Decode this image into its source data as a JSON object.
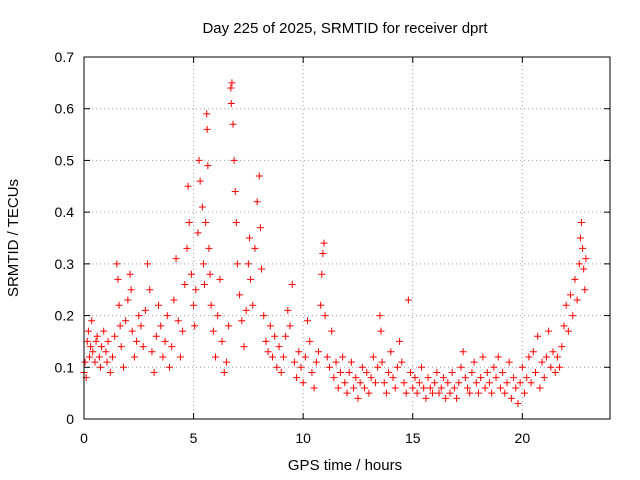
{
  "chart_data": {
    "type": "scatter",
    "title": "Day 225 of 2025, SRMTID for receiver dprt",
    "xlabel": "GPS time / hours",
    "ylabel": "SRMTID / TECUs",
    "xlim": [
      0,
      24
    ],
    "ylim": [
      0,
      0.7
    ],
    "xticks": [
      0,
      5,
      10,
      15,
      20
    ],
    "xtick_labels": [
      "0",
      "5",
      "10",
      "15",
      "20"
    ],
    "yticks": [
      0,
      0.1,
      0.2,
      0.3,
      0.4,
      0.5,
      0.6,
      0.7
    ],
    "ytick_labels": [
      "0",
      "0.1",
      "0.2",
      "0.3",
      "0.4",
      "0.5",
      "0.6",
      "0.7"
    ],
    "grid": true,
    "marker": "+",
    "marker_color": "#ff0000",
    "series": [
      {
        "name": "SRMTID",
        "points": [
          [
            0.0,
            0.09
          ],
          [
            0.05,
            0.11
          ],
          [
            0.1,
            0.08
          ],
          [
            0.15,
            0.15
          ],
          [
            0.2,
            0.17
          ],
          [
            0.25,
            0.12
          ],
          [
            0.3,
            0.14
          ],
          [
            0.35,
            0.19
          ],
          [
            0.4,
            0.13
          ],
          [
            0.5,
            0.11
          ],
          [
            0.55,
            0.15
          ],
          [
            0.6,
            0.16
          ],
          [
            0.7,
            0.12
          ],
          [
            0.75,
            0.1
          ],
          [
            0.8,
            0.14
          ],
          [
            0.9,
            0.17
          ],
          [
            1.0,
            0.13
          ],
          [
            1.05,
            0.11
          ],
          [
            1.1,
            0.15
          ],
          [
            1.2,
            0.09
          ],
          [
            1.3,
            0.12
          ],
          [
            1.4,
            0.16
          ],
          [
            1.5,
            0.3
          ],
          [
            1.55,
            0.27
          ],
          [
            1.6,
            0.22
          ],
          [
            1.65,
            0.18
          ],
          [
            1.7,
            0.14
          ],
          [
            1.8,
            0.1
          ],
          [
            1.9,
            0.19
          ],
          [
            2.0,
            0.23
          ],
          [
            2.1,
            0.28
          ],
          [
            2.15,
            0.25
          ],
          [
            2.2,
            0.17
          ],
          [
            2.3,
            0.12
          ],
          [
            2.4,
            0.15
          ],
          [
            2.5,
            0.2
          ],
          [
            2.6,
            0.18
          ],
          [
            2.7,
            0.14
          ],
          [
            2.8,
            0.21
          ],
          [
            2.9,
            0.3
          ],
          [
            3.0,
            0.25
          ],
          [
            3.1,
            0.13
          ],
          [
            3.2,
            0.09
          ],
          [
            3.3,
            0.16
          ],
          [
            3.4,
            0.22
          ],
          [
            3.5,
            0.18
          ],
          [
            3.6,
            0.12
          ],
          [
            3.7,
            0.15
          ],
          [
            3.8,
            0.2
          ],
          [
            3.9,
            0.1
          ],
          [
            4.0,
            0.14
          ],
          [
            4.1,
            0.23
          ],
          [
            4.2,
            0.31
          ],
          [
            4.3,
            0.19
          ],
          [
            4.4,
            0.12
          ],
          [
            4.5,
            0.17
          ],
          [
            4.6,
            0.26
          ],
          [
            4.7,
            0.33
          ],
          [
            4.75,
            0.45
          ],
          [
            4.8,
            0.38
          ],
          [
            4.9,
            0.28
          ],
          [
            5.0,
            0.22
          ],
          [
            5.05,
            0.18
          ],
          [
            5.1,
            0.25
          ],
          [
            5.2,
            0.36
          ],
          [
            5.25,
            0.5
          ],
          [
            5.3,
            0.46
          ],
          [
            5.4,
            0.41
          ],
          [
            5.45,
            0.3
          ],
          [
            5.5,
            0.26
          ],
          [
            5.55,
            0.38
          ],
          [
            5.6,
            0.59
          ],
          [
            5.62,
            0.56
          ],
          [
            5.65,
            0.49
          ],
          [
            5.7,
            0.33
          ],
          [
            5.75,
            0.28
          ],
          [
            5.8,
            0.22
          ],
          [
            5.9,
            0.17
          ],
          [
            6.0,
            0.12
          ],
          [
            6.1,
            0.2
          ],
          [
            6.2,
            0.27
          ],
          [
            6.3,
            0.15
          ],
          [
            6.4,
            0.09
          ],
          [
            6.5,
            0.11
          ],
          [
            6.6,
            0.18
          ],
          [
            6.7,
            0.64
          ],
          [
            6.72,
            0.61
          ],
          [
            6.75,
            0.65
          ],
          [
            6.8,
            0.57
          ],
          [
            6.85,
            0.5
          ],
          [
            6.9,
            0.44
          ],
          [
            6.95,
            0.38
          ],
          [
            7.0,
            0.3
          ],
          [
            7.1,
            0.24
          ],
          [
            7.2,
            0.19
          ],
          [
            7.3,
            0.14
          ],
          [
            7.4,
            0.21
          ],
          [
            7.5,
            0.3
          ],
          [
            7.55,
            0.35
          ],
          [
            7.6,
            0.27
          ],
          [
            7.7,
            0.22
          ],
          [
            7.8,
            0.33
          ],
          [
            7.9,
            0.42
          ],
          [
            8.0,
            0.47
          ],
          [
            8.05,
            0.37
          ],
          [
            8.1,
            0.29
          ],
          [
            8.2,
            0.2
          ],
          [
            8.3,
            0.15
          ],
          [
            8.4,
            0.13
          ],
          [
            8.5,
            0.18
          ],
          [
            8.6,
            0.12
          ],
          [
            8.7,
            0.16
          ],
          [
            8.8,
            0.1
          ],
          [
            8.9,
            0.14
          ],
          [
            9.0,
            0.09
          ],
          [
            9.1,
            0.12
          ],
          [
            9.2,
            0.16
          ],
          [
            9.3,
            0.21
          ],
          [
            9.4,
            0.18
          ],
          [
            9.5,
            0.26
          ],
          [
            9.6,
            0.11
          ],
          [
            9.7,
            0.08
          ],
          [
            9.8,
            0.13
          ],
          [
            9.9,
            0.1
          ],
          [
            10.0,
            0.07
          ],
          [
            10.1,
            0.12
          ],
          [
            10.2,
            0.19
          ],
          [
            10.3,
            0.15
          ],
          [
            10.4,
            0.09
          ],
          [
            10.5,
            0.06
          ],
          [
            10.6,
            0.11
          ],
          [
            10.7,
            0.13
          ],
          [
            10.8,
            0.22
          ],
          [
            10.85,
            0.28
          ],
          [
            10.9,
            0.32
          ],
          [
            10.95,
            0.34
          ],
          [
            11.0,
            0.2
          ],
          [
            11.1,
            0.12
          ],
          [
            11.2,
            0.1
          ],
          [
            11.3,
            0.17
          ],
          [
            11.4,
            0.08
          ],
          [
            11.5,
            0.11
          ],
          [
            11.6,
            0.06
          ],
          [
            11.7,
            0.09
          ],
          [
            11.8,
            0.12
          ],
          [
            11.9,
            0.07
          ],
          [
            12.0,
            0.05
          ],
          [
            12.1,
            0.09
          ],
          [
            12.2,
            0.11
          ],
          [
            12.3,
            0.06
          ],
          [
            12.4,
            0.08
          ],
          [
            12.5,
            0.04
          ],
          [
            12.6,
            0.07
          ],
          [
            12.7,
            0.1
          ],
          [
            12.8,
            0.06
          ],
          [
            12.9,
            0.09
          ],
          [
            13.0,
            0.05
          ],
          [
            13.1,
            0.08
          ],
          [
            13.2,
            0.12
          ],
          [
            13.3,
            0.07
          ],
          [
            13.4,
            0.1
          ],
          [
            13.5,
            0.2
          ],
          [
            13.55,
            0.17
          ],
          [
            13.6,
            0.11
          ],
          [
            13.7,
            0.07
          ],
          [
            13.8,
            0.05
          ],
          [
            13.9,
            0.09
          ],
          [
            14.0,
            0.13
          ],
          [
            14.1,
            0.08
          ],
          [
            14.2,
            0.06
          ],
          [
            14.3,
            0.1
          ],
          [
            14.4,
            0.15
          ],
          [
            14.5,
            0.11
          ],
          [
            14.6,
            0.07
          ],
          [
            14.7,
            0.05
          ],
          [
            14.8,
            0.23
          ],
          [
            14.9,
            0.09
          ],
          [
            15.0,
            0.06
          ],
          [
            15.1,
            0.08
          ],
          [
            15.2,
            0.05
          ],
          [
            15.3,
            0.07
          ],
          [
            15.4,
            0.1
          ],
          [
            15.5,
            0.06
          ],
          [
            15.6,
            0.04
          ],
          [
            15.7,
            0.08
          ],
          [
            15.8,
            0.06
          ],
          [
            15.9,
            0.05
          ],
          [
            16.0,
            0.07
          ],
          [
            16.1,
            0.09
          ],
          [
            16.2,
            0.05
          ],
          [
            16.3,
            0.06
          ],
          [
            16.4,
            0.08
          ],
          [
            16.5,
            0.04
          ],
          [
            16.6,
            0.07
          ],
          [
            16.7,
            0.05
          ],
          [
            16.8,
            0.09
          ],
          [
            16.9,
            0.06
          ],
          [
            17.0,
            0.04
          ],
          [
            17.1,
            0.07
          ],
          [
            17.2,
            0.1
          ],
          [
            17.3,
            0.13
          ],
          [
            17.4,
            0.08
          ],
          [
            17.5,
            0.06
          ],
          [
            17.6,
            0.05
          ],
          [
            17.7,
            0.09
          ],
          [
            17.8,
            0.11
          ],
          [
            17.9,
            0.07
          ],
          [
            18.0,
            0.05
          ],
          [
            18.1,
            0.08
          ],
          [
            18.2,
            0.12
          ],
          [
            18.3,
            0.06
          ],
          [
            18.4,
            0.09
          ],
          [
            18.5,
            0.07
          ],
          [
            18.6,
            0.05
          ],
          [
            18.7,
            0.1
          ],
          [
            18.8,
            0.08
          ],
          [
            18.9,
            0.12
          ],
          [
            19.0,
            0.06
          ],
          [
            19.1,
            0.09
          ],
          [
            19.2,
            0.05
          ],
          [
            19.3,
            0.07
          ],
          [
            19.4,
            0.11
          ],
          [
            19.5,
            0.04
          ],
          [
            19.6,
            0.08
          ],
          [
            19.7,
            0.06
          ],
          [
            19.8,
            0.03
          ],
          [
            19.9,
            0.07
          ],
          [
            20.0,
            0.1
          ],
          [
            20.1,
            0.05
          ],
          [
            20.2,
            0.08
          ],
          [
            20.3,
            0.12
          ],
          [
            20.4,
            0.07
          ],
          [
            20.5,
            0.13
          ],
          [
            20.6,
            0.09
          ],
          [
            20.7,
            0.16
          ],
          [
            20.8,
            0.06
          ],
          [
            20.9,
            0.11
          ],
          [
            21.0,
            0.08
          ],
          [
            21.1,
            0.12
          ],
          [
            21.2,
            0.17
          ],
          [
            21.3,
            0.1
          ],
          [
            21.4,
            0.13
          ],
          [
            21.5,
            0.09
          ],
          [
            21.6,
            0.12
          ],
          [
            21.7,
            0.1
          ],
          [
            21.8,
            0.14
          ],
          [
            21.9,
            0.18
          ],
          [
            22.0,
            0.22
          ],
          [
            22.1,
            0.17
          ],
          [
            22.2,
            0.24
          ],
          [
            22.3,
            0.2
          ],
          [
            22.4,
            0.27
          ],
          [
            22.5,
            0.23
          ],
          [
            22.6,
            0.3
          ],
          [
            22.65,
            0.35
          ],
          [
            22.7,
            0.38
          ],
          [
            22.75,
            0.33
          ],
          [
            22.8,
            0.29
          ],
          [
            22.85,
            0.25
          ],
          [
            22.9,
            0.31
          ]
        ]
      }
    ]
  }
}
